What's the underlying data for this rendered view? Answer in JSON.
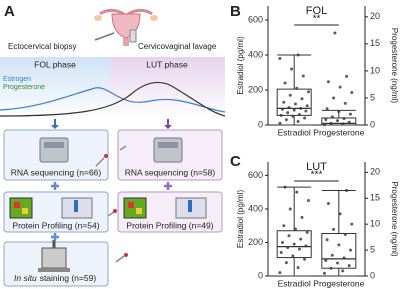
{
  "panel_a": {
    "label": "A",
    "biopsy": "Ectocervical biopsy",
    "lavage": "Cervicovaginal lavage",
    "fol_phase": "FOL phase",
    "lut_phase": "LUT phase",
    "legend": [
      "Estrogen",
      "Progesterone"
    ],
    "rna_fol": "RNA sequencing (n=66)",
    "rna_lut": "RNA sequencing (n=58)",
    "protein_fol": "Protein Profiling (n=54)",
    "protein_lut": "Protein Profiling (n=49)",
    "in_situ": "In situ",
    "staining": "staining (n=59)"
  },
  "chart_data": [
    {
      "type": "box",
      "panel_label": "B",
      "title": "FOL",
      "significance": "**",
      "y_label": "Estradiol (pg/ml)",
      "y2_label": "Progesterone (ng/ml)",
      "categories": [
        "Estradiol",
        "Progesterone"
      ],
      "ylim": [
        0,
        680
      ],
      "yticks": [
        0,
        200,
        400,
        600
      ],
      "y2lim": [
        0,
        22
      ],
      "y2ticks": [
        0,
        5,
        10,
        15,
        20
      ],
      "boxes": [
        {
          "axis": "y",
          "min": 0,
          "q1": 55,
          "median": 95,
          "q3": 205,
          "max": 400,
          "points": [
            10,
            20,
            30,
            40,
            50,
            55,
            60,
            70,
            80,
            85,
            90,
            95,
            100,
            110,
            120,
            130,
            150,
            170,
            190,
            210,
            240,
            280,
            320,
            380,
            400
          ]
        },
        {
          "axis": "y2",
          "min": 0,
          "q1": 0,
          "median": 0.3,
          "q3": 1.3,
          "max": 2.7,
          "points": [
            0.1,
            0.2,
            0.3,
            0.5,
            0.8,
            1,
            1.2,
            1.5,
            2,
            2.5,
            3,
            4,
            5,
            6,
            7,
            8,
            9,
            17
          ]
        }
      ]
    },
    {
      "type": "box",
      "panel_label": "C",
      "title": "LUT",
      "significance": "***",
      "y_label": "Estradiol (pg/ml)",
      "y2_label": "Progesterone (ng/ml)",
      "categories": [
        "Estradiol",
        "Progesterone"
      ],
      "ylim": [
        0,
        680
      ],
      "yticks": [
        0,
        200,
        400,
        600
      ],
      "y2lim": [
        0,
        22
      ],
      "y2ticks": [
        0,
        5,
        10,
        15,
        20
      ],
      "boxes": [
        {
          "axis": "y",
          "min": 0,
          "q1": 110,
          "median": 175,
          "q3": 270,
          "max": 530,
          "points": [
            20,
            50,
            80,
            100,
            120,
            140,
            160,
            170,
            180,
            190,
            200,
            220,
            240,
            260,
            280,
            300,
            350,
            400,
            450,
            500,
            530
          ]
        },
        {
          "axis": "y2",
          "min": 0,
          "q1": 1.5,
          "median": 3.3,
          "q3": 8.2,
          "max": 16.5,
          "points": [
            0.5,
            1,
            1.5,
            2,
            2.5,
            3,
            3.5,
            4,
            5,
            6,
            7,
            8,
            9,
            10,
            12,
            14,
            16.5
          ]
        }
      ]
    }
  ]
}
